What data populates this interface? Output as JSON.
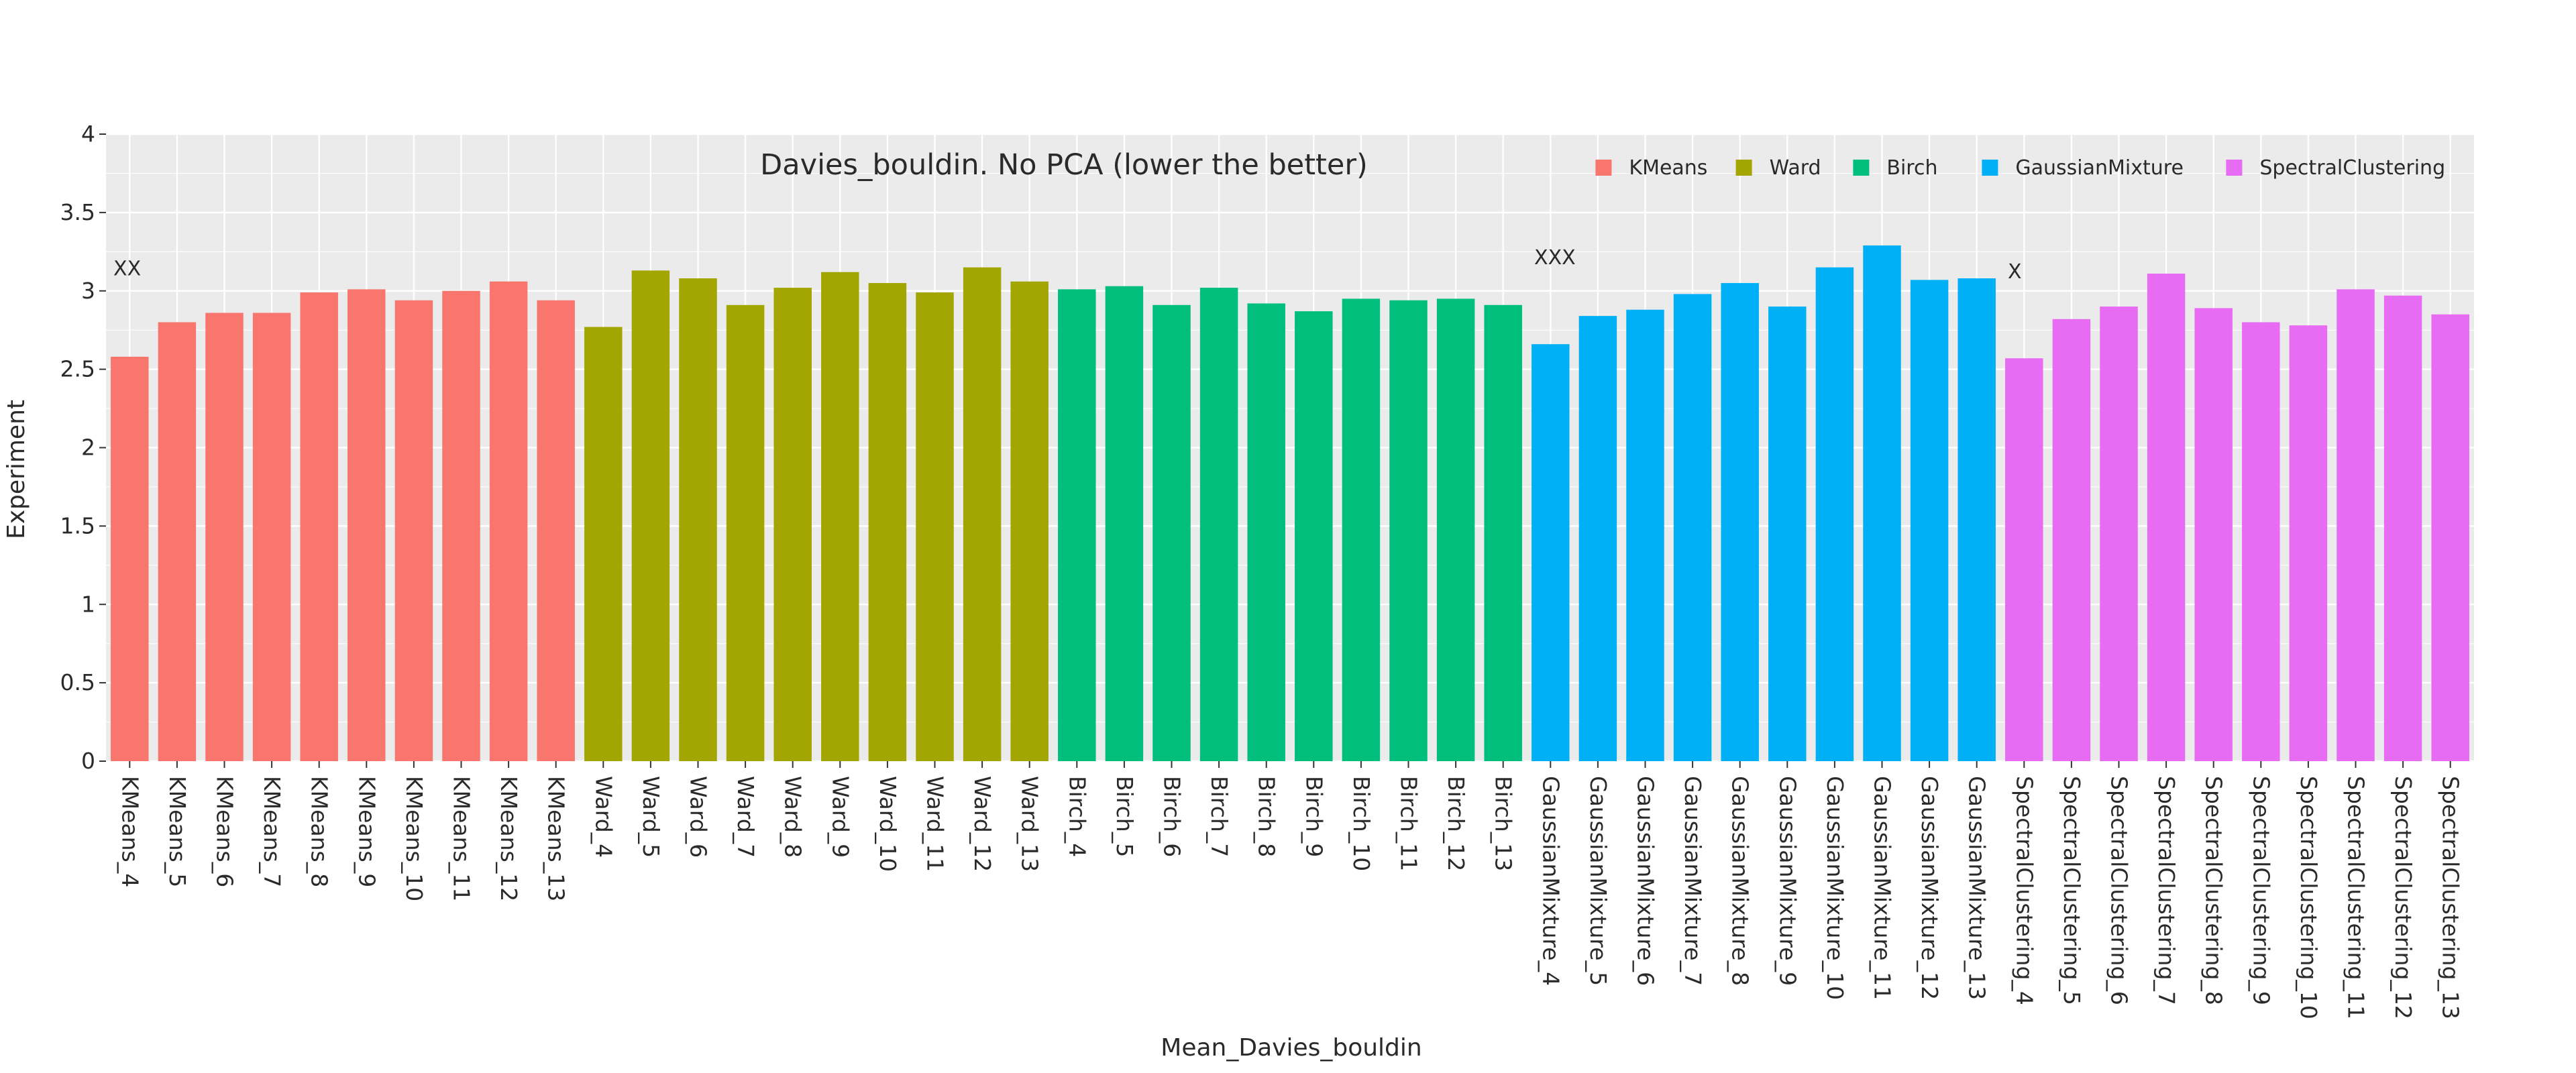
{
  "chart_data": {
    "type": "bar",
    "title": "Davies_bouldin. No PCA (lower the better)",
    "xlabel": "Mean_Davies_bouldin",
    "ylabel": "Experiment",
    "ylim": [
      0,
      4
    ],
    "yticks": [
      0,
      0.5,
      1,
      1.5,
      2,
      2.5,
      3,
      3.5,
      4
    ],
    "ytick_labels": [
      "0",
      "0.5",
      "1",
      "1.5",
      "2",
      "2.5",
      "3",
      "3.5",
      "4"
    ],
    "grid": true,
    "legend_position": "top-right",
    "series": [
      {
        "name": "KMeans",
        "color": "#F8766D",
        "categories": [
          "KMeans_4",
          "KMeans_5",
          "KMeans_6",
          "KMeans_7",
          "KMeans_8",
          "KMeans_9",
          "KMeans_10",
          "KMeans_11",
          "KMeans_12",
          "KMeans_13"
        ],
        "values": [
          2.58,
          2.8,
          2.86,
          2.86,
          2.99,
          3.01,
          2.94,
          3.0,
          3.06,
          2.94
        ]
      },
      {
        "name": "Ward",
        "color": "#A3A500",
        "categories": [
          "Ward_4",
          "Ward_5",
          "Ward_6",
          "Ward_7",
          "Ward_8",
          "Ward_9",
          "Ward_10",
          "Ward_11",
          "Ward_12",
          "Ward_13"
        ],
        "values": [
          2.77,
          3.13,
          3.08,
          2.91,
          3.02,
          3.12,
          3.05,
          2.99,
          3.15,
          3.06
        ]
      },
      {
        "name": "Birch",
        "color": "#00BF7D",
        "categories": [
          "Birch_4",
          "Birch_5",
          "Birch_6",
          "Birch_7",
          "Birch_8",
          "Birch_9",
          "Birch_10",
          "Birch_11",
          "Birch_12",
          "Birch_13"
        ],
        "values": [
          3.01,
          3.03,
          2.91,
          3.02,
          2.92,
          2.87,
          2.95,
          2.94,
          2.95,
          2.91
        ]
      },
      {
        "name": "GaussianMixture",
        "color": "#00B0F6",
        "categories": [
          "GaussianMixture_4",
          "GaussianMixture_5",
          "GaussianMixture_6",
          "GaussianMixture_7",
          "GaussianMixture_8",
          "GaussianMixture_9",
          "GaussianMixture_10",
          "GaussianMixture_11",
          "GaussianMixture_12",
          "GaussianMixture_13"
        ],
        "values": [
          2.66,
          2.84,
          2.88,
          2.98,
          3.05,
          2.9,
          3.15,
          3.29,
          3.07,
          3.08
        ]
      },
      {
        "name": "SpectralClustering",
        "color": "#E76BF3",
        "categories": [
          "SpectralClustering_4",
          "SpectralClustering_5",
          "SpectralClustering_6",
          "SpectralClustering_7",
          "SpectralClustering_8",
          "SpectralClustering_9",
          "SpectralClustering_10",
          "SpectralClustering_11",
          "SpectralClustering_12",
          "SpectralClustering_13"
        ],
        "values": [
          2.57,
          2.82,
          2.9,
          3.11,
          2.89,
          2.8,
          2.78,
          3.01,
          2.97,
          2.85
        ]
      }
    ],
    "annotations": [
      {
        "text": "XX",
        "x": "KMeans_4",
        "y": 3.1
      },
      {
        "text": "XXX",
        "x": "GaussianMixture_4",
        "y": 3.17
      },
      {
        "text": "X",
        "x": "SpectralClustering_4",
        "y": 3.08
      }
    ]
  }
}
